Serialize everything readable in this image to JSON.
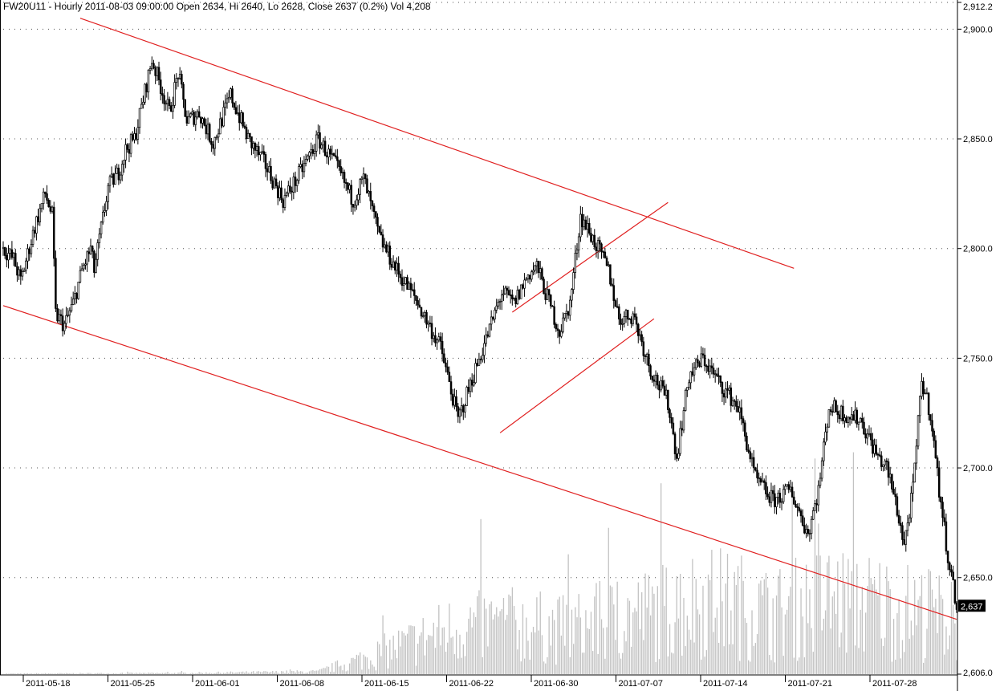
{
  "chart_data": {
    "type": "candlestick",
    "header": "FW20U11 - Hourly 2011-08-03 09:00:00 Open 2634, Hi 2640, Lo 2628, Close 2637 (0.2%) Vol 4,208",
    "last_price_label": "2,637",
    "last_price": 2637,
    "y_tick_labels": [
      "2,912.2",
      "2,900.0",
      "2,850.0",
      "2,800.0",
      "2,750.0",
      "2,700.0",
      "2,650.0",
      "2,606.0"
    ],
    "y_tick_values": [
      2912.2,
      2900,
      2850,
      2800,
      2750,
      2700,
      2650,
      2606
    ],
    "ylim": [
      2606,
      2912.2
    ],
    "grid": true,
    "x_tick_labels": [
      "2011-05-18",
      "2011-05-25",
      "2011-06-01",
      "2011-06-08",
      "2011-06-15",
      "2011-06-22",
      "2011-06-30",
      "2011-07-07",
      "2011-07-14",
      "2011-07-21",
      "2011-07-28"
    ],
    "price_path": {
      "index": [
        0,
        6,
        10,
        18,
        24,
        28,
        30,
        35,
        40,
        45,
        50,
        52,
        60,
        66,
        70,
        75,
        85,
        95,
        100,
        105,
        112,
        120,
        130,
        140,
        150,
        160,
        168,
        180,
        190,
        200,
        206,
        215,
        225,
        235,
        250,
        260,
        270,
        280,
        285,
        292,
        300,
        305,
        310,
        318,
        324,
        330,
        340,
        346,
        352,
        360,
        370,
        380,
        385,
        392,
        400,
        410,
        420,
        430,
        440,
        450,
        460,
        466,
        472,
        480,
        490,
        500,
        505,
        510,
        515,
        520,
        525,
        530,
        535,
        540,
        545
      ],
      "values": [
        2800,
        2795,
        2785,
        2810,
        2825,
        2815,
        2770,
        2765,
        2775,
        2790,
        2800,
        2790,
        2828,
        2835,
        2845,
        2850,
        2886,
        2862,
        2880,
        2858,
        2862,
        2848,
        2870,
        2850,
        2838,
        2822,
        2832,
        2850,
        2838,
        2822,
        2832,
        2805,
        2790,
        2778,
        2755,
        2722,
        2745,
        2768,
        2780,
        2775,
        2788,
        2792,
        2780,
        2762,
        2775,
        2815,
        2800,
        2790,
        2768,
        2770,
        2745,
        2730,
        2705,
        2742,
        2750,
        2738,
        2728,
        2695,
        2685,
        2690,
        2670,
        2690,
        2728,
        2725,
        2722,
        2705,
        2700,
        2685,
        2665,
        2690,
        2740,
        2725,
        2690,
        2660,
        2637
      ]
    },
    "volume": {
      "index": [
        0,
        100,
        180,
        200,
        230,
        260,
        290,
        320,
        350,
        380,
        400,
        420,
        440,
        470,
        500,
        545
      ],
      "values": [
        1,
        2,
        5,
        25,
        60,
        95,
        100,
        90,
        110,
        130,
        150,
        140,
        120,
        150,
        140,
        110
      ],
      "max": 550
    },
    "trendlines": [
      {
        "from": {
          "index": 44,
          "price": 2905
        },
        "to": {
          "index": 452,
          "price": 2791
        }
      },
      {
        "from": {
          "index": 0,
          "price": 2774
        },
        "to": {
          "index": 545,
          "price": 2631
        }
      },
      {
        "from": {
          "index": 291,
          "price": 2771
        },
        "to": {
          "index": 380,
          "price": 2821
        }
      },
      {
        "from": {
          "index": 284,
          "price": 2716
        },
        "to": {
          "index": 372,
          "price": 2768
        }
      }
    ],
    "colors": {
      "candle": "#000000",
      "volume": "#c2c2c2",
      "trendline": "#e02020",
      "grid": "#555555",
      "price_box_bg": "#000000",
      "price_box_text": "#ffffff"
    }
  }
}
